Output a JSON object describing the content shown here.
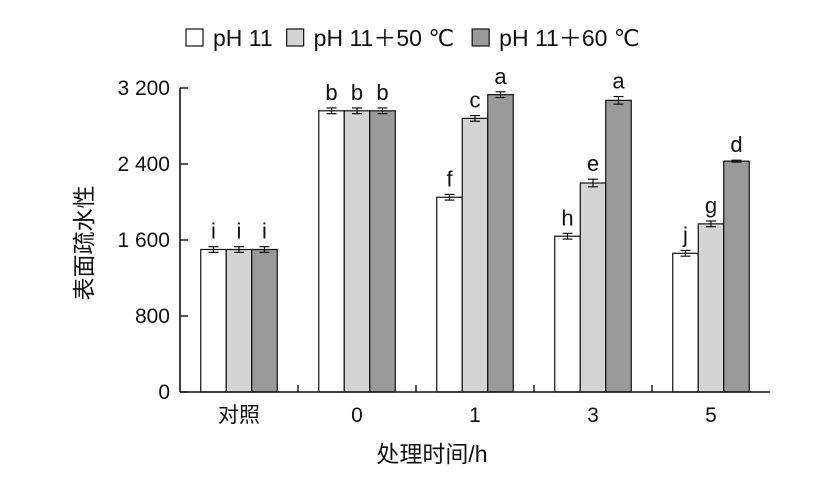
{
  "chart_data": {
    "type": "bar",
    "xlabel": "处理时间/h",
    "ylabel": "表面疏水性",
    "categories": [
      "对照",
      "0",
      "1",
      "3",
      "5"
    ],
    "ylim": [
      0,
      3200
    ],
    "yticks": [
      0,
      800,
      1600,
      2400,
      3200
    ],
    "ytick_labels": [
      "0",
      "800",
      "1 600",
      "2 400",
      "3 200"
    ],
    "grid": false,
    "legend_position": "top",
    "series": [
      {
        "name": "pH 11",
        "color": "#ffffff",
        "values": [
          1500,
          2960,
          2050,
          1640,
          1460
        ],
        "errors": [
          30,
          30,
          30,
          30,
          30
        ],
        "labels": [
          "i",
          "b",
          "f",
          "h",
          "j"
        ]
      },
      {
        "name": "pH 11＋50 ℃",
        "color": "#d4d4d4",
        "values": [
          1500,
          2960,
          2880,
          2200,
          1770
        ],
        "errors": [
          30,
          30,
          30,
          40,
          30
        ],
        "labels": [
          "i",
          "b",
          "c",
          "e",
          "g"
        ]
      },
      {
        "name": "pH 11＋60 ℃",
        "color": "#9a9a9a",
        "values": [
          1500,
          2960,
          3130,
          3070,
          2430
        ],
        "errors": [
          30,
          30,
          30,
          40,
          10
        ],
        "labels": [
          "i",
          "b",
          "a",
          "a",
          "d"
        ]
      }
    ]
  }
}
